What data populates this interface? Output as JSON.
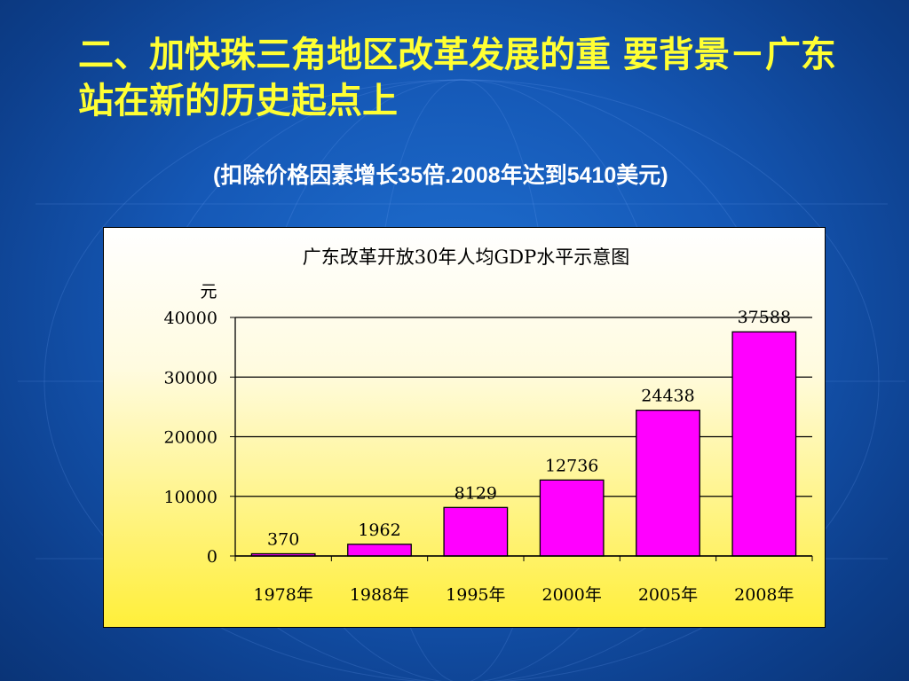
{
  "slide": {
    "title": "二、加快珠三角地区改革发展的重 要背景－广东站在新的历史起点上",
    "subtitle": "(扣除价格因素增长35倍.2008年达到5410美元)"
  },
  "chart_data": {
    "type": "bar",
    "title": "广东改革开放30年人均GDP水平示意图",
    "ylabel": "元",
    "xlabel": "",
    "categories": [
      "1978年",
      "1988年",
      "1995年",
      "2000年",
      "2005年",
      "2008年"
    ],
    "values": [
      370,
      1962,
      8129,
      12736,
      24438,
      37588
    ],
    "ylim": [
      0,
      40000
    ],
    "yticks": [
      0,
      10000,
      20000,
      30000,
      40000
    ],
    "grid": true,
    "legend": "none",
    "bar_color": "#ff00ff"
  }
}
